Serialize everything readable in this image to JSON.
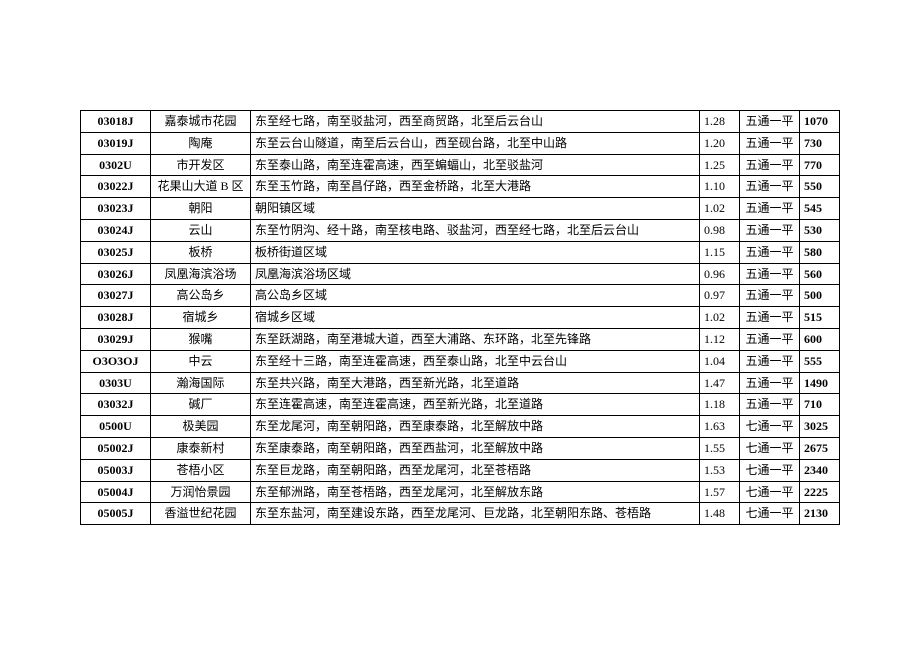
{
  "table": {
    "columns": [
      {
        "key": "code",
        "class": "col-code"
      },
      {
        "key": "name",
        "class": "col-name"
      },
      {
        "key": "desc",
        "class": "col-desc"
      },
      {
        "key": "ratio",
        "class": "col-ratio"
      },
      {
        "key": "type",
        "class": "col-type"
      },
      {
        "key": "price",
        "class": "col-price"
      }
    ],
    "rows": [
      {
        "code": "03018J",
        "name": "嘉泰城市花园",
        "desc": "东至经七路，南至驳盐河，西至商贸路，北至后云台山",
        "ratio": "1.28",
        "type": "五通一平",
        "price": "1070"
      },
      {
        "code": "03019J",
        "name": "陶庵",
        "desc": "东至云台山隧道，南至后云台山，西至砚台路，北至中山路",
        "ratio": "1.20",
        "type": "五通一平",
        "price": "730"
      },
      {
        "code": "0302U",
        "name": "市开发区",
        "desc": "东至泰山路，南至连霍高速，西至蝙蝠山，北至驳盐河",
        "ratio": "1.25",
        "type": "五通一平",
        "price": "770"
      },
      {
        "code": "03022J",
        "name": "花果山大道 B 区",
        "desc": "东至玉竹路，南至昌仔路，西至金桥路，北至大港路",
        "ratio": "1.10",
        "type": "五通一平",
        "price": "550"
      },
      {
        "code": "03023J",
        "name": "朝阳",
        "desc": "朝阳镇区域",
        "ratio": "1.02",
        "type": "五通一平",
        "price": "545"
      },
      {
        "code": "03024J",
        "name": "云山",
        "desc": "东至竹阴沟、经十路，南至核电路、驳盐河，西至经七路，北至后云台山",
        "ratio": "0.98",
        "type": "五通一平",
        "price": "530"
      },
      {
        "code": "03025J",
        "name": "板桥",
        "desc": "板桥街道区域",
        "ratio": "1.15",
        "type": "五通一平",
        "price": "580"
      },
      {
        "code": "03026J",
        "name": "凤凰海滨浴场",
        "desc": "凤凰海滨浴场区域",
        "ratio": "0.96",
        "type": "五通一平",
        "price": "560"
      },
      {
        "code": "03027J",
        "name": "高公岛乡",
        "desc": "高公岛乡区域",
        "ratio": "0.97",
        "type": "五通一平",
        "price": "500"
      },
      {
        "code": "03028J",
        "name": "宿城乡",
        "desc": "宿城乡区域",
        "ratio": "1.02",
        "type": "五通一平",
        "price": "515"
      },
      {
        "code": "03029J",
        "name": "猴嘴",
        "desc": "东至跃湖路，南至港城大道，西至大浦路、东环路，北至先锋路",
        "ratio": "1.12",
        "type": "五通一平",
        "price": "600"
      },
      {
        "code": "O3O3OJ",
        "name": "中云",
        "desc": "东至经十三路，南至连霍高速，西至泰山路，北至中云台山",
        "ratio": "1.04",
        "type": "五通一平",
        "price": "555"
      },
      {
        "code": "0303U",
        "name": "瀚海国际",
        "desc": "东至共兴路，南至大港路，西至新光路，北至道路",
        "ratio": "1.47",
        "type": "五通一平",
        "price": "1490"
      },
      {
        "code": "03032J",
        "name": "碱厂",
        "desc": "东至连霍高速，南至连霍高速，西至新光路，北至道路",
        "ratio": "1.18",
        "type": "五通一平",
        "price": "710"
      },
      {
        "code": "0500U",
        "name": "极美园",
        "desc": "东至龙尾河，南至朝阳路，西至康泰路，北至解放中路",
        "ratio": "1.63",
        "type": "七通一平",
        "price": "3025"
      },
      {
        "code": "05002J",
        "name": "康泰新村",
        "desc": "东至康泰路，南至朝阳路，西至西盐河，北至解放中路",
        "ratio": "1.55",
        "type": "七通一平",
        "price": "2675"
      },
      {
        "code": "05003J",
        "name": "苍梧小区",
        "desc": "东至巨龙路，南至朝阳路，西至龙尾河，北至苍梧路",
        "ratio": "1.53",
        "type": "七通一平",
        "price": "2340"
      },
      {
        "code": "05004J",
        "name": "万润怡景园",
        "desc": "东至郁洲路，南至苍梧路，西至龙尾河，北至解放东路",
        "ratio": "1.57",
        "type": "七通一平",
        "price": "2225"
      },
      {
        "code": "05005J",
        "name": "香溢世纪花园",
        "desc": "东至东盐河，南至建设东路，西至龙尾河、巨龙路，北至朝阳东路、苍梧路",
        "ratio": "1.48",
        "type": "七通一平",
        "price": "2130"
      }
    ]
  }
}
